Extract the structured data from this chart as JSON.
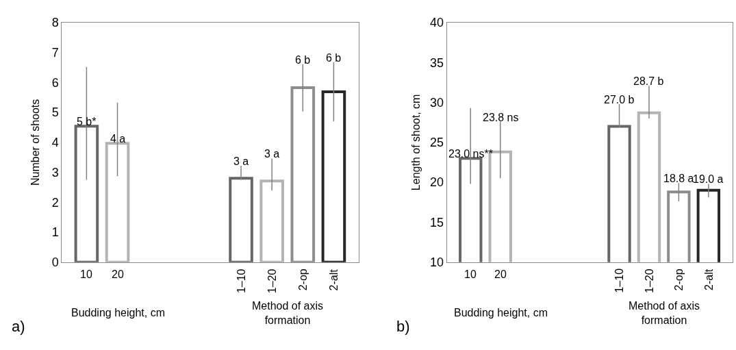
{
  "chart_data": [
    {
      "type": "bar",
      "ylabel": "Number of shoots",
      "categories": [
        "10",
        "20",
        null,
        null,
        null,
        "1–10",
        "1–20",
        "2-op",
        "2-alt"
      ],
      "values": [
        4.54,
        3.97,
        null,
        null,
        null,
        2.8,
        2.71,
        5.83,
        5.69
      ],
      "colors": [
        "#666666",
        "#b3b3b3",
        null,
        null,
        null,
        "#666666",
        "#b3b3b3",
        "#8c8c8c",
        "#262626"
      ],
      "errors": [
        [
          2.75,
          6.52
        ],
        [
          2.87,
          5.33
        ],
        null,
        null,
        null,
        [
          2.75,
          3.22
        ],
        [
          2.39,
          3.46
        ],
        [
          5.03,
          6.61
        ],
        [
          4.7,
          6.68
        ]
      ],
      "value_labels": [
        "5 b*",
        "4 a",
        null,
        null,
        null,
        "3 a",
        "3 a",
        "6 b",
        "6 b"
      ],
      "ylim": [
        0,
        8
      ],
      "yticks": [
        0,
        1,
        2,
        3,
        4,
        5,
        6,
        7,
        8
      ],
      "annotations": [
        "a)",
        "Budding height, cm",
        "Method of axis formation"
      ]
    },
    {
      "type": "bar",
      "ylabel": "Length of shoot, cm",
      "categories": [
        "10",
        "20",
        null,
        null,
        null,
        "1–10",
        "1–20",
        "2-op",
        "2-alt"
      ],
      "values": [
        23.0,
        23.8,
        null,
        null,
        null,
        27.0,
        28.7,
        18.8,
        19.0
      ],
      "colors": [
        "#666666",
        "#b3b3b3",
        null,
        null,
        null,
        "#666666",
        "#b3b3b3",
        "#8c8c8c",
        "#262626"
      ],
      "errors": [
        [
          19.8,
          29.3
        ],
        [
          20.5,
          27.6
        ],
        null,
        null,
        null,
        [
          26.9,
          29.8
        ],
        [
          28.0,
          32.1
        ],
        [
          17.6,
          19.9
        ],
        [
          18.1,
          19.8
        ]
      ],
      "value_labels": [
        "23.0 ns**",
        "23.8 ns",
        null,
        null,
        null,
        "27.0 b",
        "28.7 b",
        "18.8 a",
        "19.0 a"
      ],
      "ylim": [
        10,
        40
      ],
      "yticks": [
        10,
        15,
        20,
        25,
        30,
        35,
        40
      ],
      "annotations": [
        "b)",
        "Budding height, cm",
        "Method of axis formation"
      ]
    }
  ]
}
